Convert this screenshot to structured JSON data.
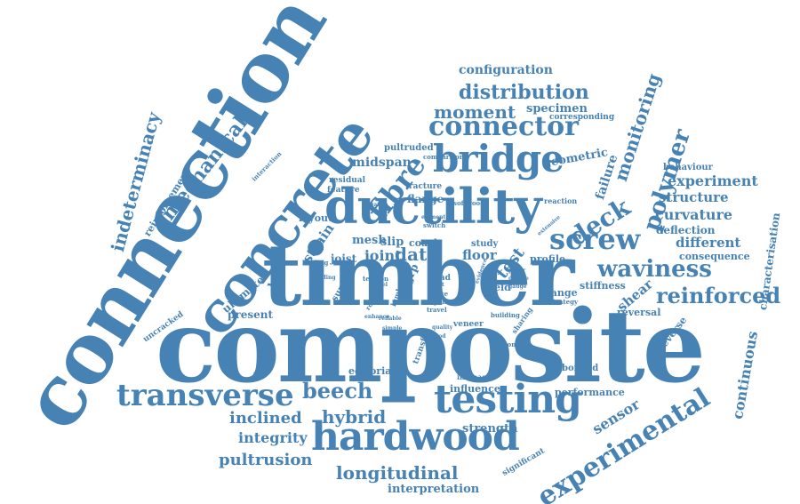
{
  "accent_color": "#4682b4",
  "words": {
    "connection": "connection",
    "concrete": "concrete",
    "timber": "timber",
    "composite": "composite",
    "ductility": "ductility",
    "hardwood": "hardwood",
    "testing": "testing",
    "bridge": "bridge",
    "transverse": "transverse",
    "experimental": "experimental",
    "screw": "screw",
    "connector": "connector",
    "waviness": "waviness",
    "reinforced": "reinforced",
    "distribution": "distribution",
    "moment": "moment",
    "fibre": "fibre",
    "longitudinal": "longitudinal",
    "polymer": "polymer",
    "monitoring": "monitoring",
    "deck": "deck",
    "mechanical": "mechanical",
    "indeterminacy": "indeterminacy",
    "beech": "beech",
    "hybrid": "hybrid",
    "inclined": "inclined",
    "integrity": "integrity",
    "pultrusion": "pultrusion",
    "interpretation": "interpretation",
    "sensor": "sensor",
    "continuous": "continuous",
    "characterisation": "characterisation",
    "curvature": "curvature",
    "experiment": "experiment",
    "structure": "structure",
    "deflection": "deflection",
    "different": "different",
    "consequence": "consequence",
    "behaviour": "behaviour",
    "failure": "failure",
    "geometric": "geometric",
    "configuration": "configuration",
    "specimen": "specimen",
    "corresponding": "corresponding",
    "reinforcement": "reinforcement",
    "midspan": "midspan",
    "pultruded": "pultruded",
    "flange": "flange",
    "fracture": "fracture",
    "residual": "residual",
    "feature": "feature",
    "strain": "strain",
    "layout": "layout",
    "mesh": "mesh",
    "slip": "slip",
    "coach": "coach",
    "study": "study",
    "joist": "joist",
    "joint": "joint",
    "data": "data",
    "floor": "floor",
    "test": "test",
    "profile": "profile",
    "load": "load",
    "ultimate": "ultimate",
    "present": "present",
    "uncracked": "uncracked",
    "support": "support",
    "stiffness": "stiffness",
    "shear": "shear",
    "reversal": "reversal",
    "reverse": "reverse",
    "range": "range",
    "strategy": "strategy",
    "field": "field",
    "building": "building",
    "veneer": "veneer",
    "bonded": "bonded",
    "editorial": "editorial",
    "influence": "influence",
    "increase": "increase",
    "performance": "performance",
    "section": "section",
    "strength": "strength",
    "significant": "significant",
    "comparison": "comparison",
    "interaction": "interaction",
    "reaction": "reaction",
    "softwood": "softwood",
    "negative": "negative",
    "switch": "switch",
    "element": "element",
    "loading": "loading",
    "bonding": "bonding",
    "tension": "tension",
    "road": "road",
    "grp": "grp",
    "steel": "steel",
    "unit": "unit",
    "force": "force",
    "span": "span",
    "travel": "travel",
    "lumber": "lumber",
    "rough": "rough",
    "reliable": "reliable",
    "simple": "simple",
    "method": "method",
    "transfer": "transfer",
    "sharing": "sharing",
    "continuity": "continuity",
    "paper": "paper",
    "double": "double",
    "gauge": "gauge",
    "extensive": "extensive",
    "enhance": "enhance",
    "quality": "quality",
    "evidence": "evidence"
  }
}
